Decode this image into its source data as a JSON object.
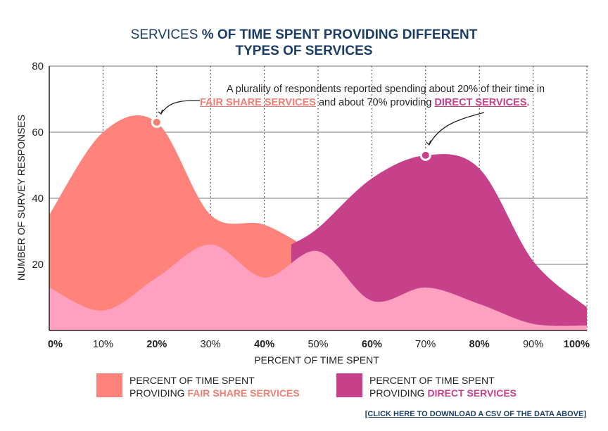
{
  "title": {
    "prefix": "SERVICES",
    "main_line1": "% OF TIME SPENT PROVIDING DIFFERENT",
    "main_line2": "TYPES OF SERVICES"
  },
  "annotation": {
    "line1": "A plurality of respondents reported spending about 20% of their time in",
    "fair_share": "FAIR SHARE SERVICES",
    "middle": " and about 70% providing ",
    "direct": "DIRECT SERVICES",
    "end": "."
  },
  "legend": [
    {
      "line1": "PERCENT OF TIME SPENT",
      "line2_prefix": "PROVIDING ",
      "line2_emph": "FAIR SHARE SERVICES",
      "color": "#ff837a"
    },
    {
      "line1": "PERCENT OF TIME SPENT",
      "line2_prefix": "PROVIDING ",
      "line2_emph": "DIRECT SERVICES",
      "color": "#c7408a"
    }
  ],
  "download_link": "[CLICK HERE TO DOWNLOAD A CSV OF THE DATA ABOVE]",
  "colors": {
    "fair_share": "#ff837a",
    "direct": "#c7408a",
    "overlap": "#ffa0c0",
    "title": "#1c3d66",
    "accent_fair": "#f27d72",
    "accent_direct": "#c7408a"
  },
  "chart_data": {
    "type": "area",
    "xlabel": "PERCENT OF TIME SPENT",
    "ylabel": "NUMBER OF SURVEY RESPONSES",
    "x_ticks": [
      "0%",
      "10%",
      "20%",
      "30%",
      "40%",
      "50%",
      "60%",
      "70%",
      "80%",
      "90%",
      "100%"
    ],
    "x_ticks_bold": [
      "0%",
      "20%",
      "40%",
      "60%",
      "80%",
      "100%"
    ],
    "y_ticks": [
      20,
      40,
      60,
      80
    ],
    "ylim": [
      0,
      80
    ],
    "xlim": [
      0,
      100
    ],
    "grid": true,
    "series": [
      {
        "name": "PERCENT OF TIME SPENT PROVIDING FAIR SHARE SERVICES",
        "x": [
          0,
          10,
          20,
          30,
          40,
          50
        ],
        "values": [
          35,
          60,
          63,
          35,
          32,
          23
        ]
      },
      {
        "name": "PERCENT OF TIME SPENT PROVIDING DIRECT SERVICES",
        "x": [
          0,
          10,
          20,
          30,
          40,
          50,
          60,
          70,
          80,
          90,
          100
        ],
        "values": [
          13,
          6,
          16,
          26,
          16,
          24,
          9,
          13,
          8,
          2,
          1.5
        ]
      },
      {
        "x": [
          45,
          50,
          60,
          70,
          80,
          90,
          100
        ],
        "values": [
          26,
          31,
          46,
          53,
          49,
          21,
          7
        ]
      }
    ],
    "highlights": [
      {
        "x": 20,
        "y": 63
      },
      {
        "x": 70,
        "y": 53
      }
    ]
  }
}
